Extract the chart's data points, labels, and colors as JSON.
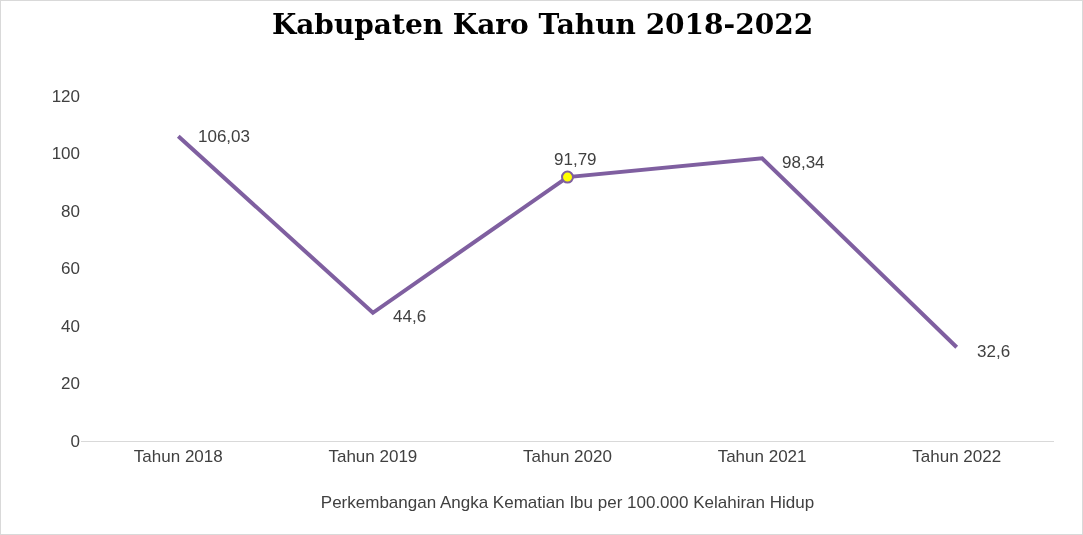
{
  "chart_data": {
    "type": "line",
    "title": "Kabupaten Karo Tahun 2018-2022",
    "xlabel": "Perkembangan Angka Kematian Ibu per 100.000 Kelahiran Hidup",
    "categories": [
      "Tahun 2018",
      "Tahun 2019",
      "Tahun 2020",
      "Tahun 2021",
      "Tahun 2022"
    ],
    "series": [
      {
        "color": "#7f5fa0",
        "values": [
          106.03,
          44.6,
          91.79,
          98.34,
          32.6
        ],
        "value_labels": [
          "106,03",
          "44,6",
          "91,79",
          "98,34",
          "32,6"
        ]
      },
      {
        "type": "scatter",
        "color": "#ffff00",
        "marker": "circle",
        "x": [
          "Tahun 2020"
        ],
        "values": [
          91.79
        ]
      }
    ],
    "ylim": [
      0,
      120
    ],
    "yticks": [
      0,
      20,
      40,
      60,
      80,
      100,
      120
    ],
    "grid": false,
    "marker": "none",
    "line_style": "solid"
  }
}
